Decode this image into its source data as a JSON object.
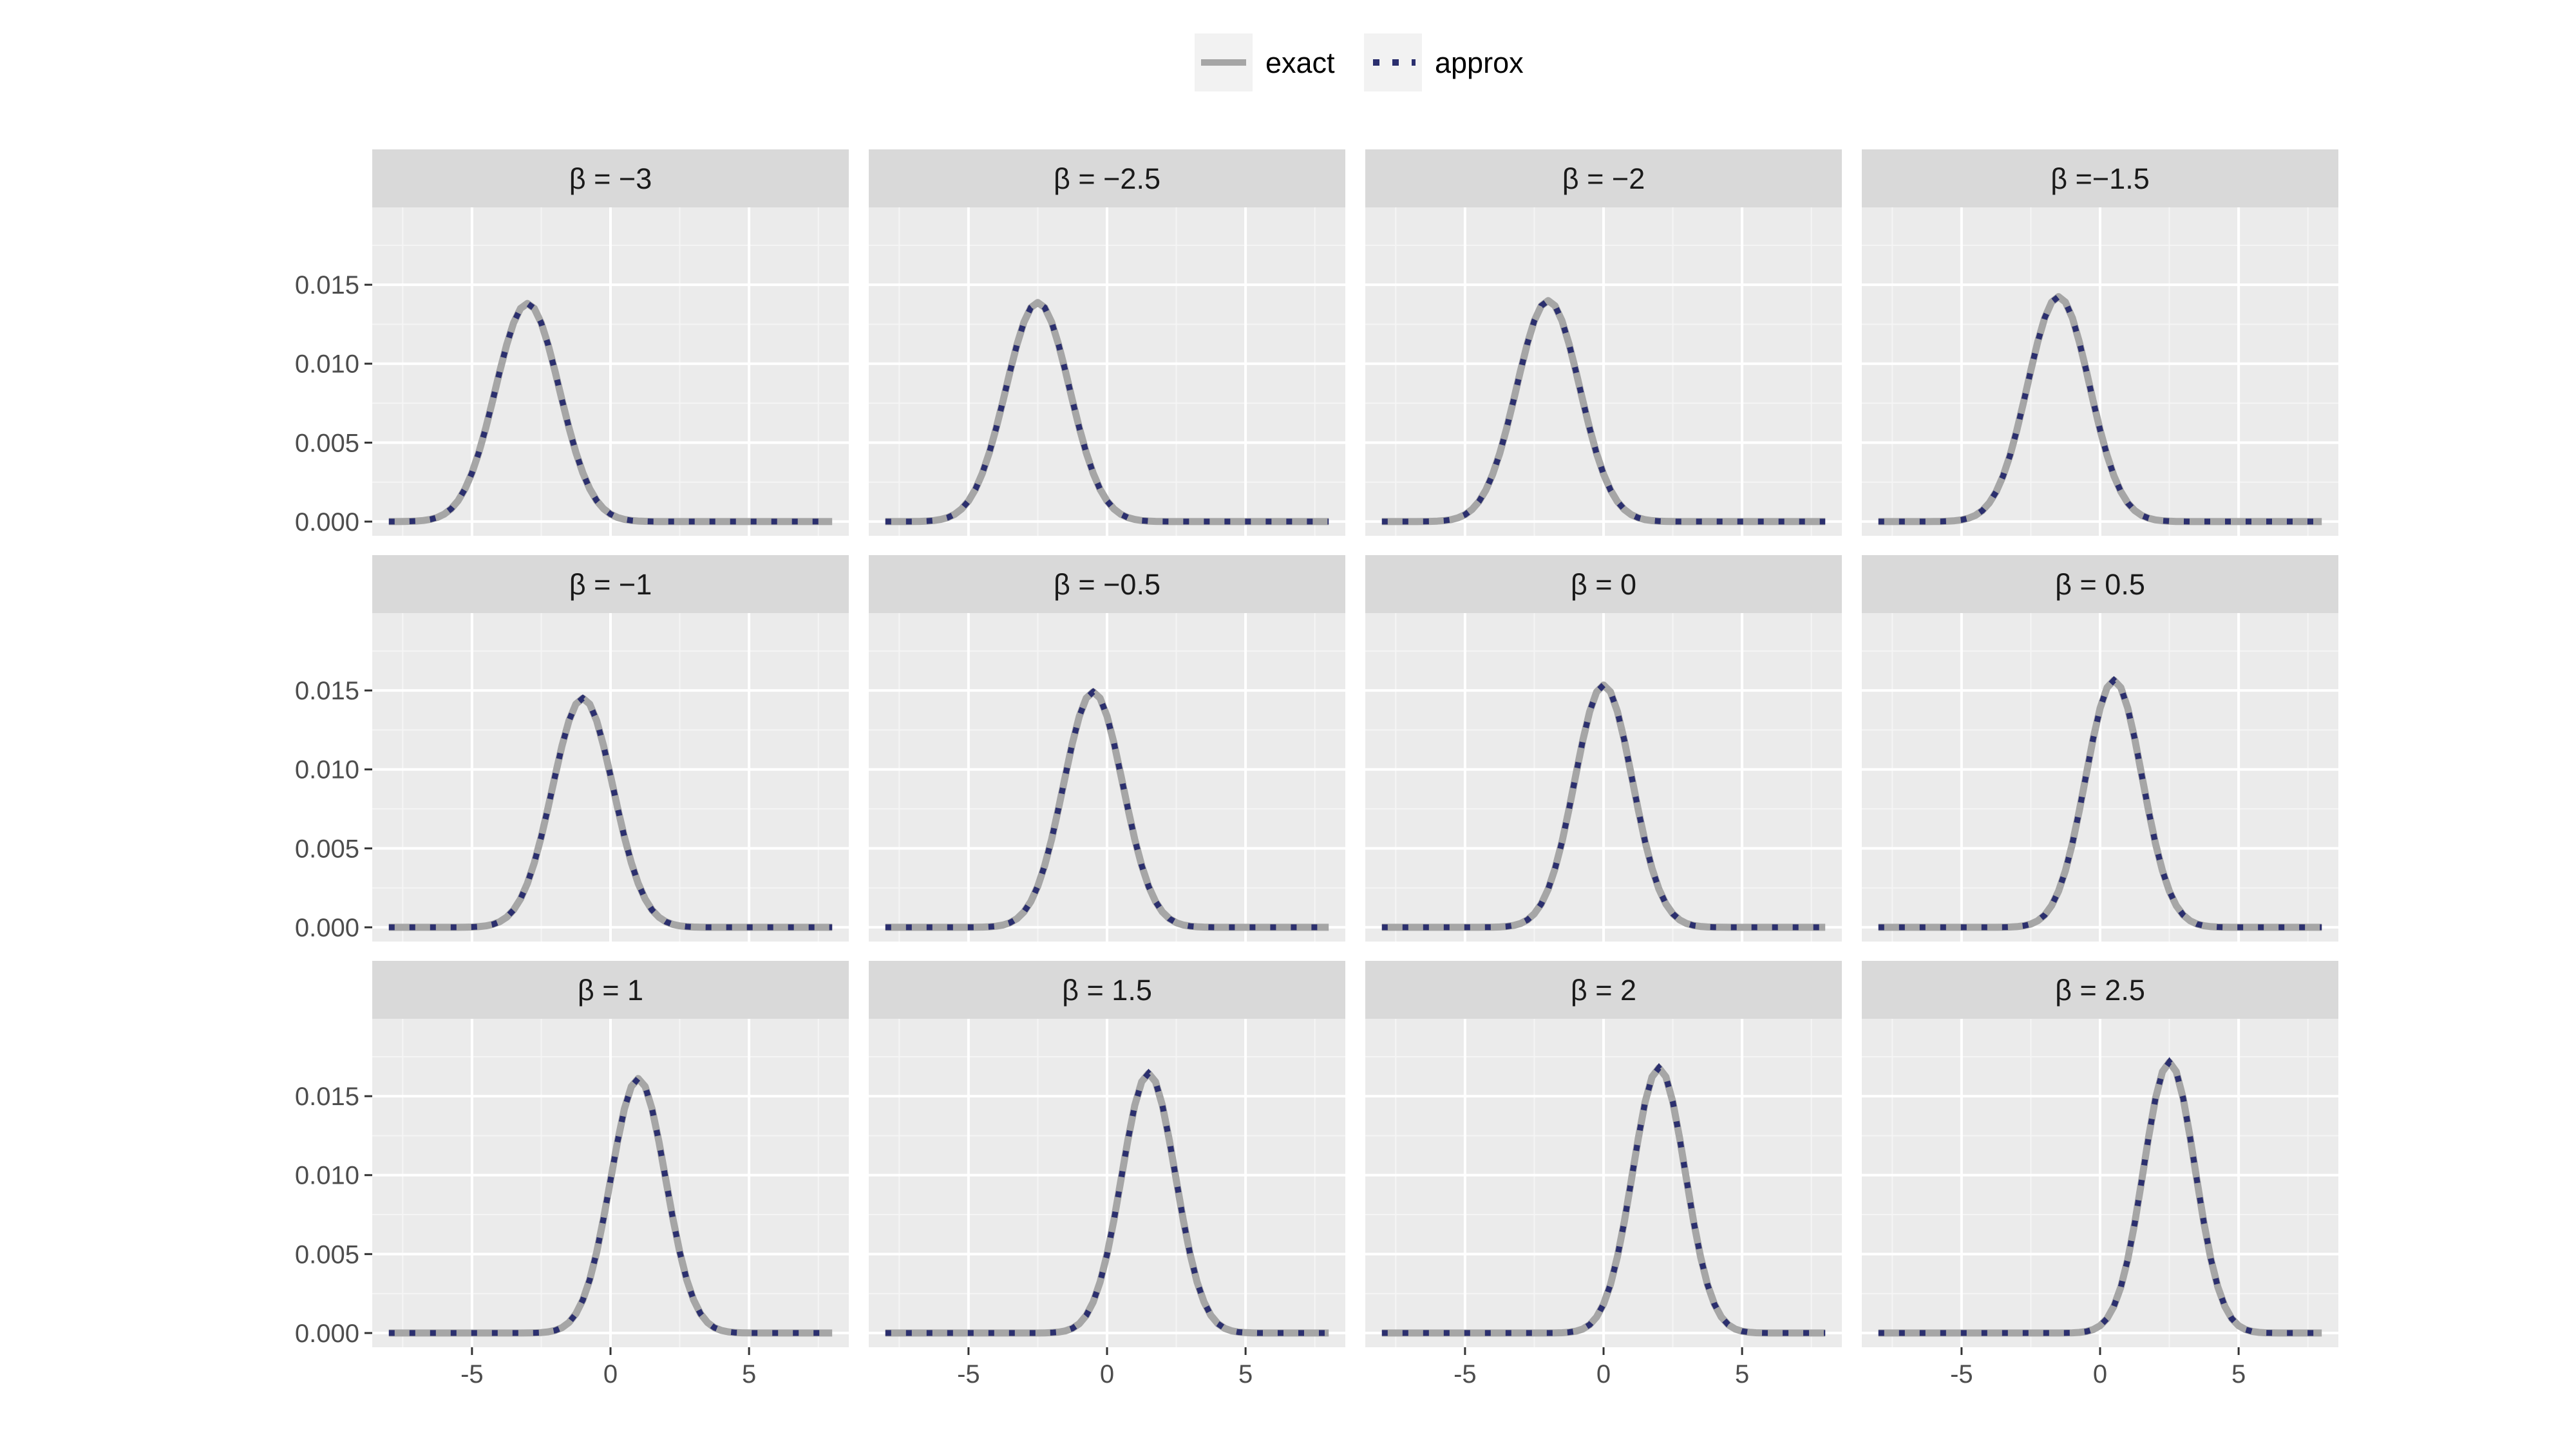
{
  "chart_data": {
    "type": "line",
    "layout": "facet-grid-3x4",
    "legend": {
      "position": "top",
      "entries": [
        {
          "label": "exact",
          "style": "solid",
          "color": "#a6a6a6"
        },
        {
          "label": "approx",
          "style": "dotted",
          "color": "#2b2f6e"
        }
      ]
    },
    "colors": {
      "panel_bg": "#ebebeb",
      "strip_bg": "#d9d9d9",
      "grid_major": "#ffffff",
      "grid_minor": "#f5f5f5",
      "exact": "#a6a6a6",
      "approx": "#2b2f6e"
    },
    "xlim": [
      -8.6,
      8.6
    ],
    "ylim": [
      -0.0009,
      0.0199
    ],
    "x_ticks": [
      -5,
      0,
      5
    ],
    "x_tick_labels": [
      "-5",
      "0",
      "5"
    ],
    "y_ticks": [
      0,
      0.005,
      0.01,
      0.015
    ],
    "y_tick_labels": [
      "0.000",
      "0.005",
      "0.010",
      "0.015"
    ],
    "x_range": [
      -8,
      8
    ],
    "sample_step": 0.25,
    "panels": [
      {
        "label": "β = −3",
        "beta": -3,
        "sd": 1.155
      },
      {
        "label": "β = −2.5",
        "beta": -2.5,
        "sd": 1.15
      },
      {
        "label": "β = −2",
        "beta": -2,
        "sd": 1.14
      },
      {
        "label": "β =−1.5",
        "beta": -1.5,
        "sd": 1.12
      },
      {
        "label": "β = −1",
        "beta": -1,
        "sd": 1.1
      },
      {
        "label": "β = −0.5",
        "beta": -0.5,
        "sd": 1.07
      },
      {
        "label": "β =  0",
        "beta": 0,
        "sd": 1.04
      },
      {
        "label": "β = 0.5",
        "beta": 0.5,
        "sd": 1.02
      },
      {
        "label": "β =  1",
        "beta": 1,
        "sd": 0.99
      },
      {
        "label": "β =   1.5",
        "beta": 1.5,
        "sd": 0.97
      },
      {
        "label": "β =  2",
        "beta": 2,
        "sd": 0.95
      },
      {
        "label": "β = 2.5",
        "beta": 2.5,
        "sd": 0.93
      }
    ]
  }
}
